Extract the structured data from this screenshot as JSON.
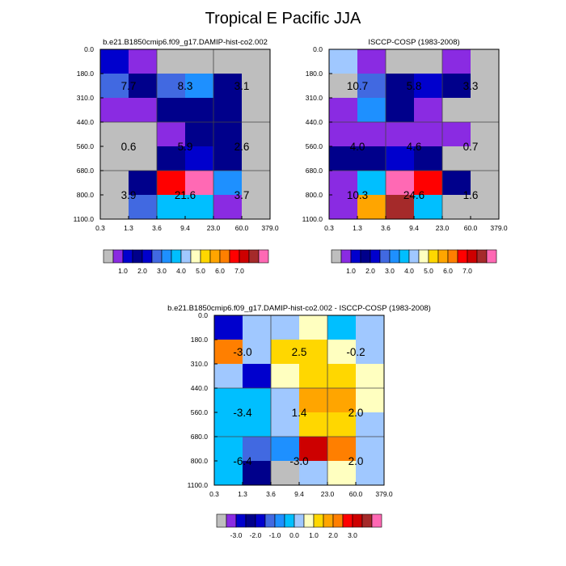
{
  "figure_title": "Tropical E Pacific JJA",
  "chart_data": [
    {
      "type": "heatmap",
      "title": "b.e21.B1850cmip6.f09_g17.DAMIP-hist-co2.002",
      "x_ticks": [
        "0.3",
        "1.3",
        "3.6",
        "9.4",
        "23.0",
        "60.0",
        "379.0"
      ],
      "y_ticks": [
        "0.0",
        "180.0",
        "310.0",
        "440.0",
        "560.0",
        "680.0",
        "800.0",
        "1100.0"
      ],
      "cell_colors": [
        [
          "#0000cd",
          "#8a2be2",
          "#bebebe",
          "#bebebe",
          "#bebebe",
          "#bebebe"
        ],
        [
          "#4169e1",
          "#00008b",
          "#4169e1",
          "#1e90ff",
          "#00008b",
          "#bebebe"
        ],
        [
          "#8a2be2",
          "#8a2be2",
          "#00008b",
          "#00008b",
          "#00008b",
          "#bebebe"
        ],
        [
          "#bebebe",
          "#bebebe",
          "#8a2be2",
          "#00008b",
          "#00008b",
          "#bebebe"
        ],
        [
          "#bebebe",
          "#bebebe",
          "#00008b",
          "#0000cd",
          "#00008b",
          "#bebebe"
        ],
        [
          "#bebebe",
          "#00008b",
          "#ff0000",
          "#ff69b4",
          "#1e90ff",
          "#bebebe"
        ],
        [
          "#bebebe",
          "#4169e1",
          "#00bfff",
          "#00bfff",
          "#8a2be2",
          "#bebebe"
        ]
      ],
      "quadrant_labels": [
        {
          "text": "7.7",
          "x": 0,
          "y": 0
        },
        {
          "text": "8.3",
          "x": 1,
          "y": 0
        },
        {
          "text": "3.1",
          "x": 2,
          "y": 0
        },
        {
          "text": "0.6",
          "x": 0,
          "y": 1
        },
        {
          "text": "5.9",
          "x": 1,
          "y": 1
        },
        {
          "text": "2.6",
          "x": 2,
          "y": 1
        },
        {
          "text": "3.9",
          "x": 0,
          "y": 2
        },
        {
          "text": "21.6",
          "x": 1,
          "y": 2
        },
        {
          "text": "3.7",
          "x": 2,
          "y": 2
        }
      ]
    },
    {
      "type": "heatmap",
      "title": "ISCCP-COSP (1983-2008)",
      "x_ticks": [
        "0.3",
        "1.3",
        "3.6",
        "9.4",
        "23.0",
        "60.0",
        "379.0"
      ],
      "y_ticks": [
        "0.0",
        "180.0",
        "310.0",
        "440.0",
        "560.0",
        "680.0",
        "800.0",
        "1100.0"
      ],
      "cell_colors": [
        [
          "#a0c8ff",
          "#8a2be2",
          "#bebebe",
          "#bebebe",
          "#8a2be2",
          "#bebebe"
        ],
        [
          "#bebebe",
          "#4169e1",
          "#00008b",
          "#0000cd",
          "#00008b",
          "#bebebe"
        ],
        [
          "#8a2be2",
          "#1e90ff",
          "#00008b",
          "#8a2be2",
          "#bebebe",
          "#bebebe"
        ],
        [
          "#8a2be2",
          "#8a2be2",
          "#8a2be2",
          "#8a2be2",
          "#8a2be2",
          "#bebebe"
        ],
        [
          "#00008b",
          "#00008b",
          "#0000cd",
          "#00008b",
          "#bebebe",
          "#bebebe"
        ],
        [
          "#8a2be2",
          "#00bfff",
          "#ff69b4",
          "#ff0000",
          "#00008b",
          "#bebebe"
        ],
        [
          "#8a2be2",
          "#ffa500",
          "#a52a2a",
          "#00bfff",
          "#bebebe",
          "#bebebe"
        ]
      ],
      "quadrant_labels": [
        {
          "text": "10.7",
          "x": 0,
          "y": 0
        },
        {
          "text": "5.8",
          "x": 1,
          "y": 0
        },
        {
          "text": "3.3",
          "x": 2,
          "y": 0
        },
        {
          "text": "4.0",
          "x": 0,
          "y": 1
        },
        {
          "text": "4.6",
          "x": 1,
          "y": 1
        },
        {
          "text": "0.7",
          "x": 2,
          "y": 1
        },
        {
          "text": "10.3",
          "x": 0,
          "y": 2
        },
        {
          "text": "24.6",
          "x": 1,
          "y": 2
        },
        {
          "text": "1.6",
          "x": 2,
          "y": 2
        }
      ]
    },
    {
      "type": "heatmap",
      "title": "b.e21.B1850cmip6.f09_g17.DAMIP-hist-co2.002 - ISCCP-COSP (1983-2008)",
      "x_ticks": [
        "0.3",
        "1.3",
        "3.6",
        "9.4",
        "23.0",
        "60.0",
        "379.0"
      ],
      "y_ticks": [
        "0.0",
        "180.0",
        "310.0",
        "440.0",
        "560.0",
        "680.0",
        "800.0",
        "1100.0"
      ],
      "cell_colors": [
        [
          "#0000cd",
          "#a0c8ff",
          "#a0c8ff",
          "#ffffc0",
          "#00bfff",
          "#a0c8ff"
        ],
        [
          "#ff7f00",
          "#a0c8ff",
          "#ffd700",
          "#ffd700",
          "#ffffc0",
          "#a0c8ff"
        ],
        [
          "#a0c8ff",
          "#0000cd",
          "#ffffc0",
          "#ffd700",
          "#ffd700",
          "#ffffc0"
        ],
        [
          "#00bfff",
          "#00bfff",
          "#a0c8ff",
          "#ffa500",
          "#ffa500",
          "#ffffc0"
        ],
        [
          "#00bfff",
          "#00bfff",
          "#a0c8ff",
          "#ffd700",
          "#ffd700",
          "#a0c8ff"
        ],
        [
          "#00bfff",
          "#4169e1",
          "#1e90ff",
          "#cd0000",
          "#ff7f00",
          "#a0c8ff"
        ],
        [
          "#00bfff",
          "#00008b",
          "#bebebe",
          "#a0c8ff",
          "#ffffc0",
          "#a0c8ff"
        ]
      ],
      "quadrant_labels": [
        {
          "text": "-3.0",
          "x": 0,
          "y": 0
        },
        {
          "text": "2.5",
          "x": 1,
          "y": 0
        },
        {
          "text": "-0.2",
          "x": 2,
          "y": 0
        },
        {
          "text": "-3.4",
          "x": 0,
          "y": 1
        },
        {
          "text": "1.4",
          "x": 1,
          "y": 1
        },
        {
          "text": "2.0",
          "x": 2,
          "y": 1
        },
        {
          "text": "-6.4",
          "x": 0,
          "y": 2
        },
        {
          "text": "-3.0",
          "x": 1,
          "y": 2
        },
        {
          "text": "2.0",
          "x": 2,
          "y": 2
        }
      ]
    }
  ],
  "colorbars": [
    {
      "colors": [
        "#bebebe",
        "#8a2be2",
        "#0000cd",
        "#00008b",
        "#0000cd",
        "#4169e1",
        "#1e90ff",
        "#00bfff",
        "#a0c8ff",
        "#ffffc0",
        "#ffd700",
        "#ffa500",
        "#ff7f00",
        "#ff0000",
        "#cd0000",
        "#a52a2a",
        "#ff69b4"
      ],
      "labels": [
        "1.0",
        "2.0",
        "3.0",
        "4.0",
        "5.0",
        "6.0",
        "7.0"
      ]
    },
    {
      "colors": [
        "#bebebe",
        "#8a2be2",
        "#0000cd",
        "#00008b",
        "#0000cd",
        "#4169e1",
        "#1e90ff",
        "#00bfff",
        "#a0c8ff",
        "#ffffc0",
        "#ffd700",
        "#ffa500",
        "#ff7f00",
        "#ff0000",
        "#cd0000",
        "#a52a2a",
        "#ff69b4"
      ],
      "labels": [
        "1.0",
        "2.0",
        "3.0",
        "4.0",
        "5.0",
        "6.0",
        "7.0"
      ]
    },
    {
      "colors": [
        "#bebebe",
        "#8a2be2",
        "#0000cd",
        "#00008b",
        "#0000cd",
        "#4169e1",
        "#1e90ff",
        "#00bfff",
        "#a0c8ff",
        "#ffffc0",
        "#ffd700",
        "#ffa500",
        "#ff7f00",
        "#ff0000",
        "#cd0000",
        "#a52a2a",
        "#ff69b4"
      ],
      "labels": [
        "-3.0",
        "-2.0",
        "-1.0",
        "0.0",
        "1.0",
        "2.0",
        "3.0"
      ]
    }
  ]
}
